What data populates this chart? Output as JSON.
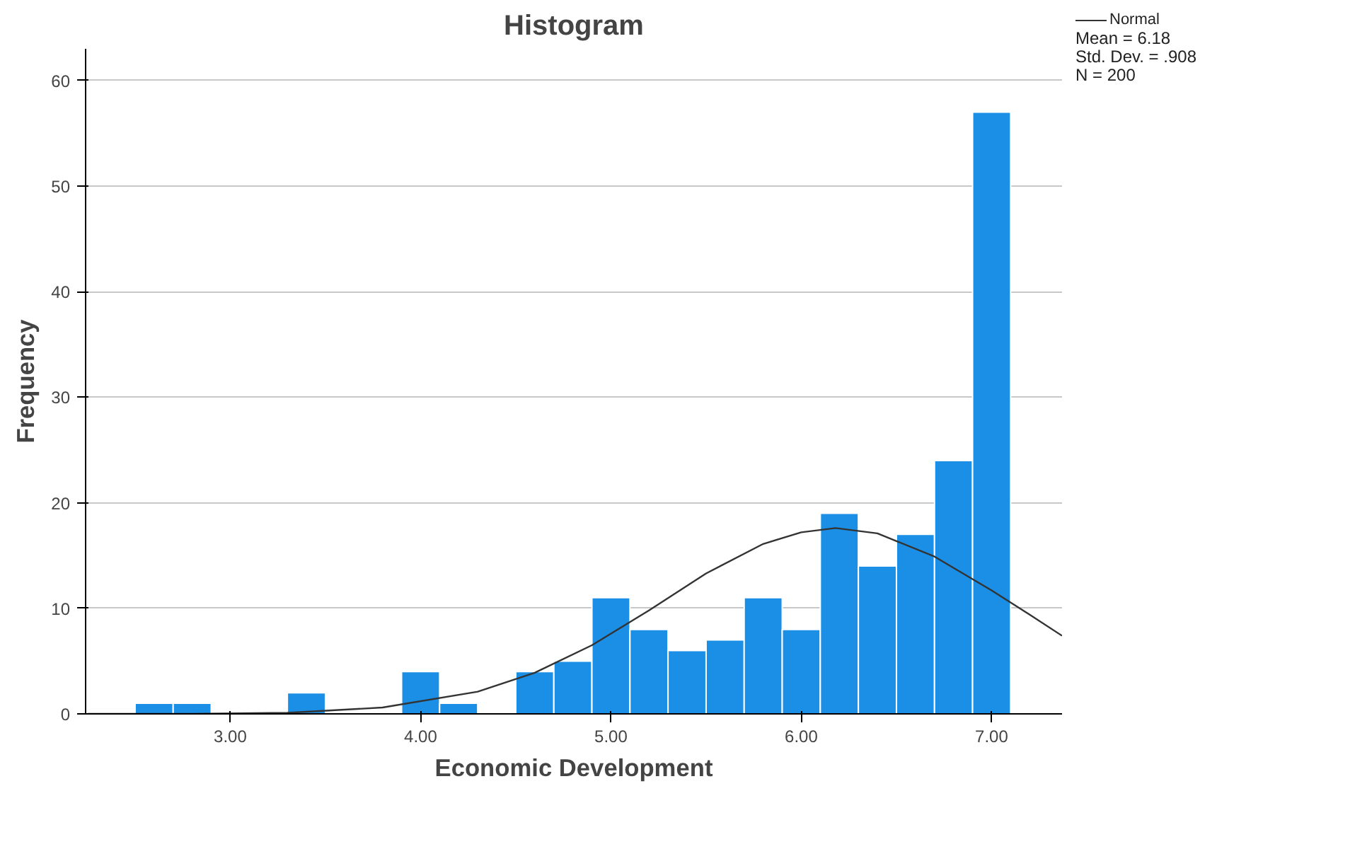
{
  "chart_data": {
    "type": "histogram",
    "title": "Histogram",
    "xlabel": "Economic Development",
    "ylabel": "Frequency",
    "bins": [
      2.5,
      2.7,
      2.9,
      3.1,
      3.3,
      3.5,
      3.7,
      3.9,
      4.1,
      4.3,
      4.5,
      4.7,
      4.9,
      5.1,
      5.3,
      5.5,
      5.7,
      5.9,
      6.1,
      6.3,
      6.5,
      6.7,
      6.9,
      7.1
    ],
    "values": [
      1,
      1,
      0,
      0,
      2,
      0,
      0,
      4,
      1,
      0,
      4,
      5,
      11,
      8,
      6,
      7,
      11,
      8,
      19,
      14,
      17,
      24,
      57
    ],
    "color": "#1b8fe6",
    "series": [
      {
        "type": "line",
        "name": "Normal",
        "color": "#333333",
        "x": [
          2.25,
          2.8,
          3.3,
          3.8,
          4.3,
          4.6,
          4.9,
          5.2,
          5.5,
          5.8,
          6.0,
          6.18,
          6.4,
          6.7,
          7.0,
          7.2,
          7.37
        ],
        "values": [
          0.0,
          0.0,
          0.1,
          0.6,
          2.1,
          3.9,
          6.5,
          9.8,
          13.3,
          16.1,
          17.2,
          17.6,
          17.1,
          14.9,
          11.7,
          9.4,
          7.4
        ]
      }
    ],
    "xlim": [
      2.24,
      7.37
    ],
    "ylim": [
      0,
      63
    ],
    "xticks": [
      {
        "value": 3,
        "label": "3.00"
      },
      {
        "value": 4,
        "label": "4.00"
      },
      {
        "value": 5,
        "label": "5.00"
      },
      {
        "value": 6,
        "label": "6.00"
      },
      {
        "value": 7,
        "label": "7.00"
      }
    ],
    "yticks": [
      0,
      10,
      20,
      30,
      40,
      50,
      60
    ],
    "grid": "y",
    "legend": "top right",
    "marker": "none",
    "line_style": "solid",
    "annotations": [
      "Mean = 6.18",
      "Std. Dev. = .908",
      "N = 200"
    ]
  }
}
